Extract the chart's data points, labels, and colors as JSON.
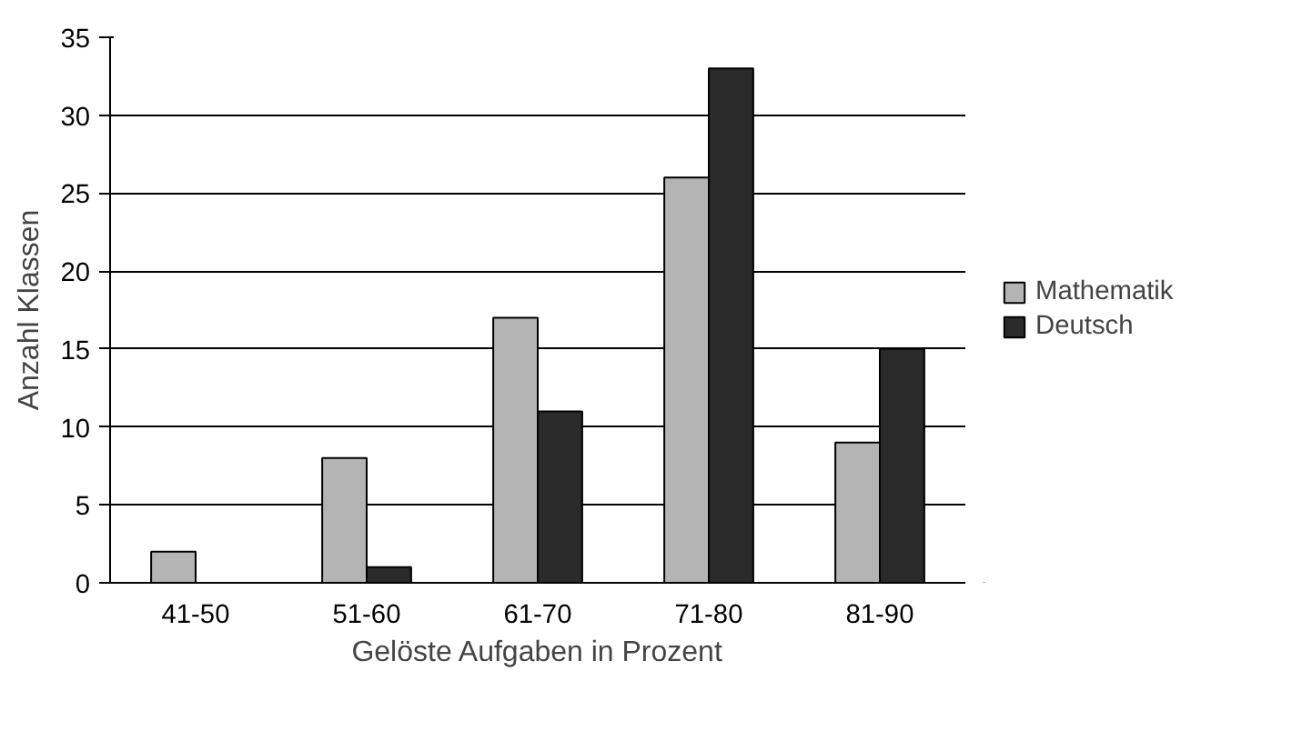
{
  "chart_data": {
    "type": "bar",
    "xlabel": "Gelöste Aufgaben in Prozent",
    "ylabel": "Anzahl Klassen",
    "categories": [
      "41-50",
      "51-60",
      "61-70",
      "71-80",
      "81-90"
    ],
    "series": [
      {
        "name": "Mathematik",
        "color": "#b4b4b4",
        "values": [
          2,
          8,
          17,
          26,
          9
        ]
      },
      {
        "name": "Deutsch",
        "color": "#2a2a2a",
        "values": [
          0,
          1,
          11,
          33,
          15
        ]
      }
    ],
    "ylim": [
      0,
      35
    ],
    "yticks": [
      0,
      5,
      10,
      15,
      20,
      25,
      30,
      35
    ],
    "grid": "y",
    "legend": "right"
  }
}
